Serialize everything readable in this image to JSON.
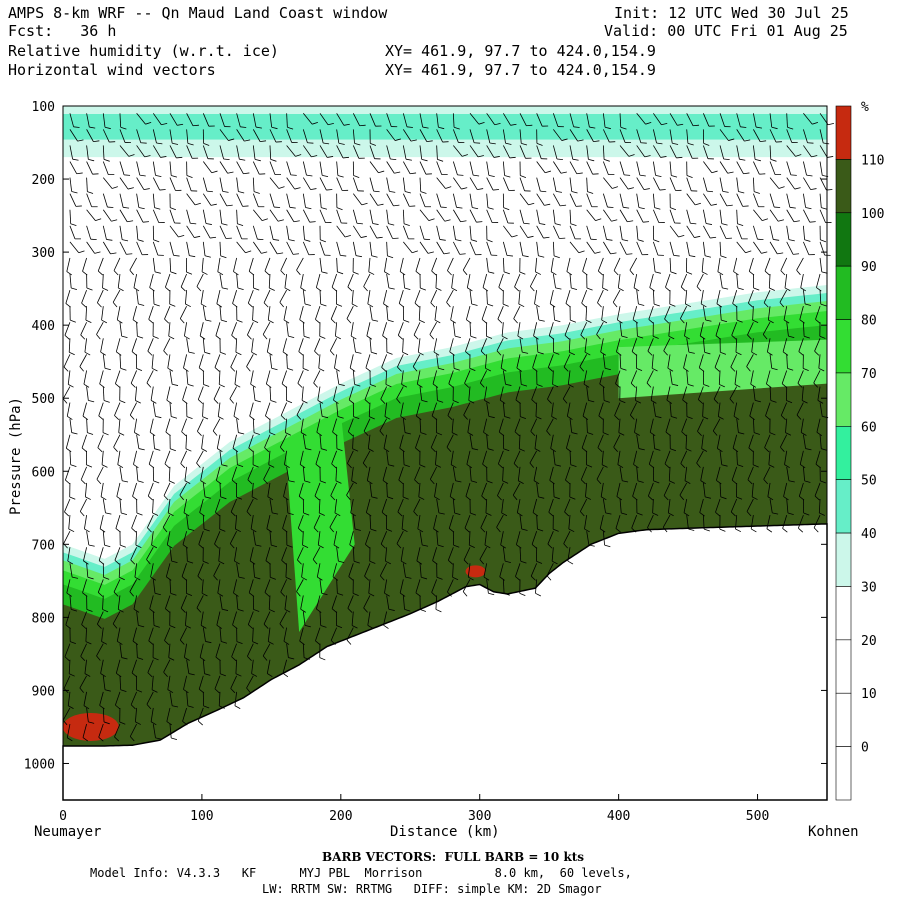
{
  "header": {
    "title": "AMPS 8-km WRF -- Qn Maud Land Coast window",
    "fcst": "Fcst:   36 h",
    "init": "Init: 12 UTC Wed 30 Jul 25",
    "valid": "Valid: 00 UTC Fri 01 Aug 25",
    "field1": "Relative humidity (w.r.t. ice)",
    "field2": "Horizontal wind vectors",
    "xy1": "XY= 461.9, 97.7 to 424.0,154.9",
    "xy2": "XY= 461.9, 97.7 to 424.0,154.9"
  },
  "chart_data": {
    "type": "heatmap",
    "xlabel": "Distance (km)",
    "ylabel": "Pressure (hPa)",
    "xlim": [
      0,
      550
    ],
    "ylim": [
      1050,
      100
    ],
    "x_ticks": [
      0,
      100,
      200,
      300,
      400,
      500
    ],
    "y_ticks": [
      100,
      200,
      300,
      400,
      500,
      600,
      700,
      800,
      900,
      1000
    ],
    "x_start_label": "Neumayer",
    "x_end_label": "Kohnen",
    "colorbar": {
      "unit": "%",
      "levels": [
        0,
        10,
        20,
        30,
        40,
        50,
        60,
        70,
        80,
        90,
        100,
        110
      ],
      "colors": [
        "#ffffff",
        "#ffffff",
        "#ffffff",
        "#ccf7ea",
        "#66eec8",
        "#33f09e",
        "#66ea66",
        "#33dd33",
        "#22bb22",
        "#117711",
        "#3a5a18",
        "#c62a10"
      ]
    },
    "terrain": {
      "x": [
        0,
        30,
        50,
        70,
        90,
        110,
        130,
        150,
        170,
        190,
        210,
        230,
        250,
        270,
        290,
        300,
        310,
        320,
        340,
        350,
        360,
        380,
        400,
        420,
        450,
        500,
        550
      ],
      "surface_pressure": [
        976,
        976,
        975,
        968,
        945,
        928,
        910,
        885,
        865,
        840,
        825,
        810,
        795,
        778,
        758,
        755,
        765,
        768,
        760,
        740,
        725,
        700,
        685,
        680,
        678,
        675,
        672
      ]
    },
    "moist_layer_top_pressure": {
      "x": [
        0,
        30,
        50,
        80,
        120,
        160,
        200,
        240,
        280,
        320,
        360,
        400,
        450,
        500,
        550
      ],
      "p": [
        700,
        720,
        700,
        620,
        560,
        520,
        480,
        445,
        430,
        410,
        400,
        385,
        370,
        355,
        345
      ]
    },
    "upper_moist_band_pressure": [
      100,
      170
    ],
    "barb_legend": "BARB VECTORS:  FULL BARB = 10 kts"
  },
  "footer": {
    "model_info": "Model Info: V4.3.3   KF      MYJ PBL  Morrison          8.0 km,  60 levels,",
    "physics": "LW: RRTM SW: RRTMG   DIFF: simple KM: 2D Smagor"
  }
}
